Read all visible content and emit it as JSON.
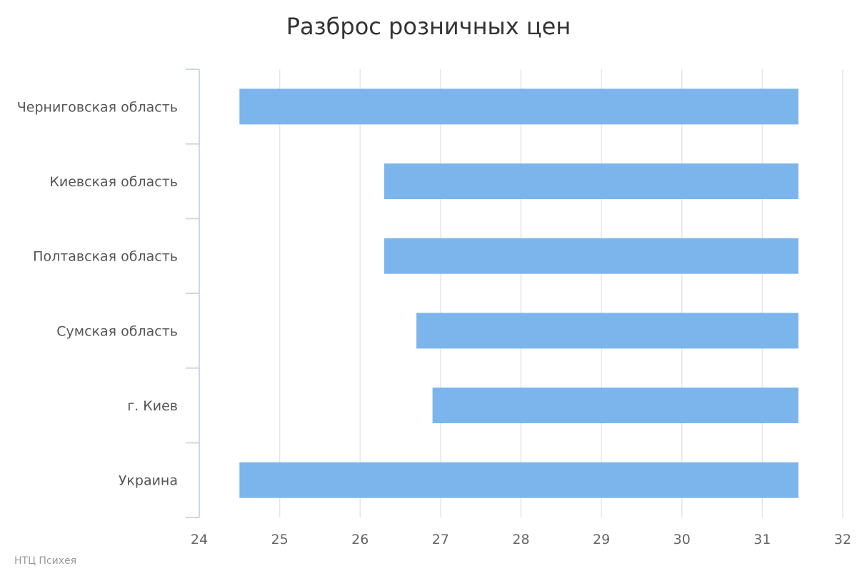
{
  "chart_data": {
    "type": "bar",
    "orientation": "horizontal",
    "title": "Разброс розничных цен",
    "categories": [
      "Черниговская область",
      "Киевская область",
      "Полтавская область",
      "Сумская область",
      "г. Киев",
      "Украина"
    ],
    "series": [
      {
        "low": [
          24.5,
          26.3,
          26.3,
          26.7,
          26.9,
          24.5
        ],
        "high": [
          31.45,
          31.45,
          31.45,
          31.45,
          31.45,
          31.45
        ]
      }
    ],
    "xlim": [
      24,
      32
    ],
    "x_ticks": [
      "24",
      "25",
      "26",
      "27",
      "28",
      "29",
      "30",
      "31",
      "32"
    ],
    "grid": true,
    "legend": "none"
  },
  "credit": "НТЦ Психея",
  "colors": {
    "bar": "#7cb5ec",
    "grid": "#e6e6e6",
    "axis": "#ccd6eb",
    "title": "#333333",
    "label": "#555555",
    "tick": "#666666",
    "credit": "#999999"
  }
}
